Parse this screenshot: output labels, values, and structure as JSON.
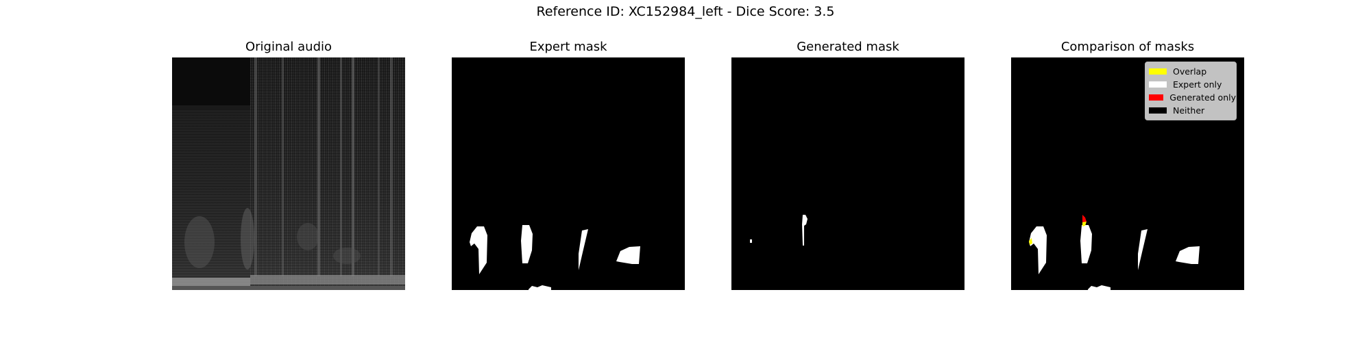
{
  "figure": {
    "suptitle": "Reference ID: XC152984_left - Dice Score: 3.5"
  },
  "chart_data": [
    {
      "type": "image",
      "title": "Original audio",
      "content": "grayscale spectrogram",
      "axes": "off"
    },
    {
      "type": "image",
      "title": "Expert mask",
      "content": "binary mask",
      "axes": "off"
    },
    {
      "type": "image",
      "title": "Generated mask",
      "content": "binary mask",
      "axes": "off"
    },
    {
      "type": "image",
      "title": "Comparison of masks",
      "content": "mask overlap map",
      "axes": "off",
      "legend": {
        "placement": "top-right",
        "entries": [
          {
            "label": "Overlap",
            "color": "#ffff00"
          },
          {
            "label": "Expert only",
            "color": "#ffffff"
          },
          {
            "label": "Generated only",
            "color": "#ff0000"
          },
          {
            "label": "Neither",
            "color": "#000000"
          }
        ]
      }
    }
  ]
}
